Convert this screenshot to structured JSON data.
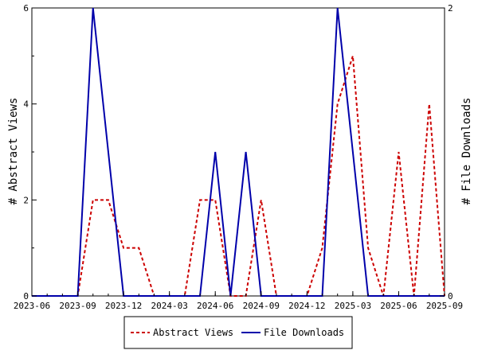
{
  "chart_data": {
    "type": "line",
    "x_tick_labels": [
      "2023-06",
      "2023-09",
      "2023-12",
      "2024-03",
      "2024-06",
      "2024-09",
      "2024-12",
      "2025-03",
      "2025-06",
      "2025-09"
    ],
    "x": [
      "2023-06",
      "2023-07",
      "2023-08",
      "2023-09",
      "2023-10",
      "2023-11",
      "2023-12",
      "2024-01",
      "2024-02",
      "2024-03",
      "2024-04",
      "2024-05",
      "2024-06",
      "2024-07",
      "2024-08",
      "2024-09",
      "2024-10",
      "2024-11",
      "2024-12",
      "2025-01",
      "2025-02",
      "2025-03",
      "2025-04",
      "2025-05",
      "2025-06",
      "2025-07",
      "2025-08",
      "2025-09"
    ],
    "ylabel": "# Abstract Views",
    "ylabel_right": "# File Downloads",
    "ylim": [
      0,
      6
    ],
    "ylim_right": [
      0,
      2
    ],
    "y_ticks": [
      0,
      2,
      4,
      6
    ],
    "y_ticks_right": [
      0,
      2
    ],
    "grid": false,
    "legend_position": "bottom-center",
    "series": [
      {
        "name": "Abstract Views",
        "axis": "left",
        "color": "#cc0000",
        "style": "dashed",
        "values": [
          0,
          0,
          0,
          0,
          2,
          2,
          1,
          1,
          0,
          0,
          0,
          2,
          2,
          0,
          0,
          2,
          0,
          0,
          0,
          1,
          4,
          5,
          1,
          0,
          3,
          0,
          4,
          0
        ]
      },
      {
        "name": "File Downloads",
        "axis": "right",
        "color": "#0000aa",
        "style": "solid",
        "values": [
          0,
          0,
          0,
          0,
          2,
          1,
          0,
          0,
          0,
          0,
          0,
          0,
          1,
          0,
          1,
          0,
          0,
          0,
          0,
          0,
          2,
          1,
          0,
          0,
          0,
          0,
          0,
          0
        ]
      }
    ]
  }
}
